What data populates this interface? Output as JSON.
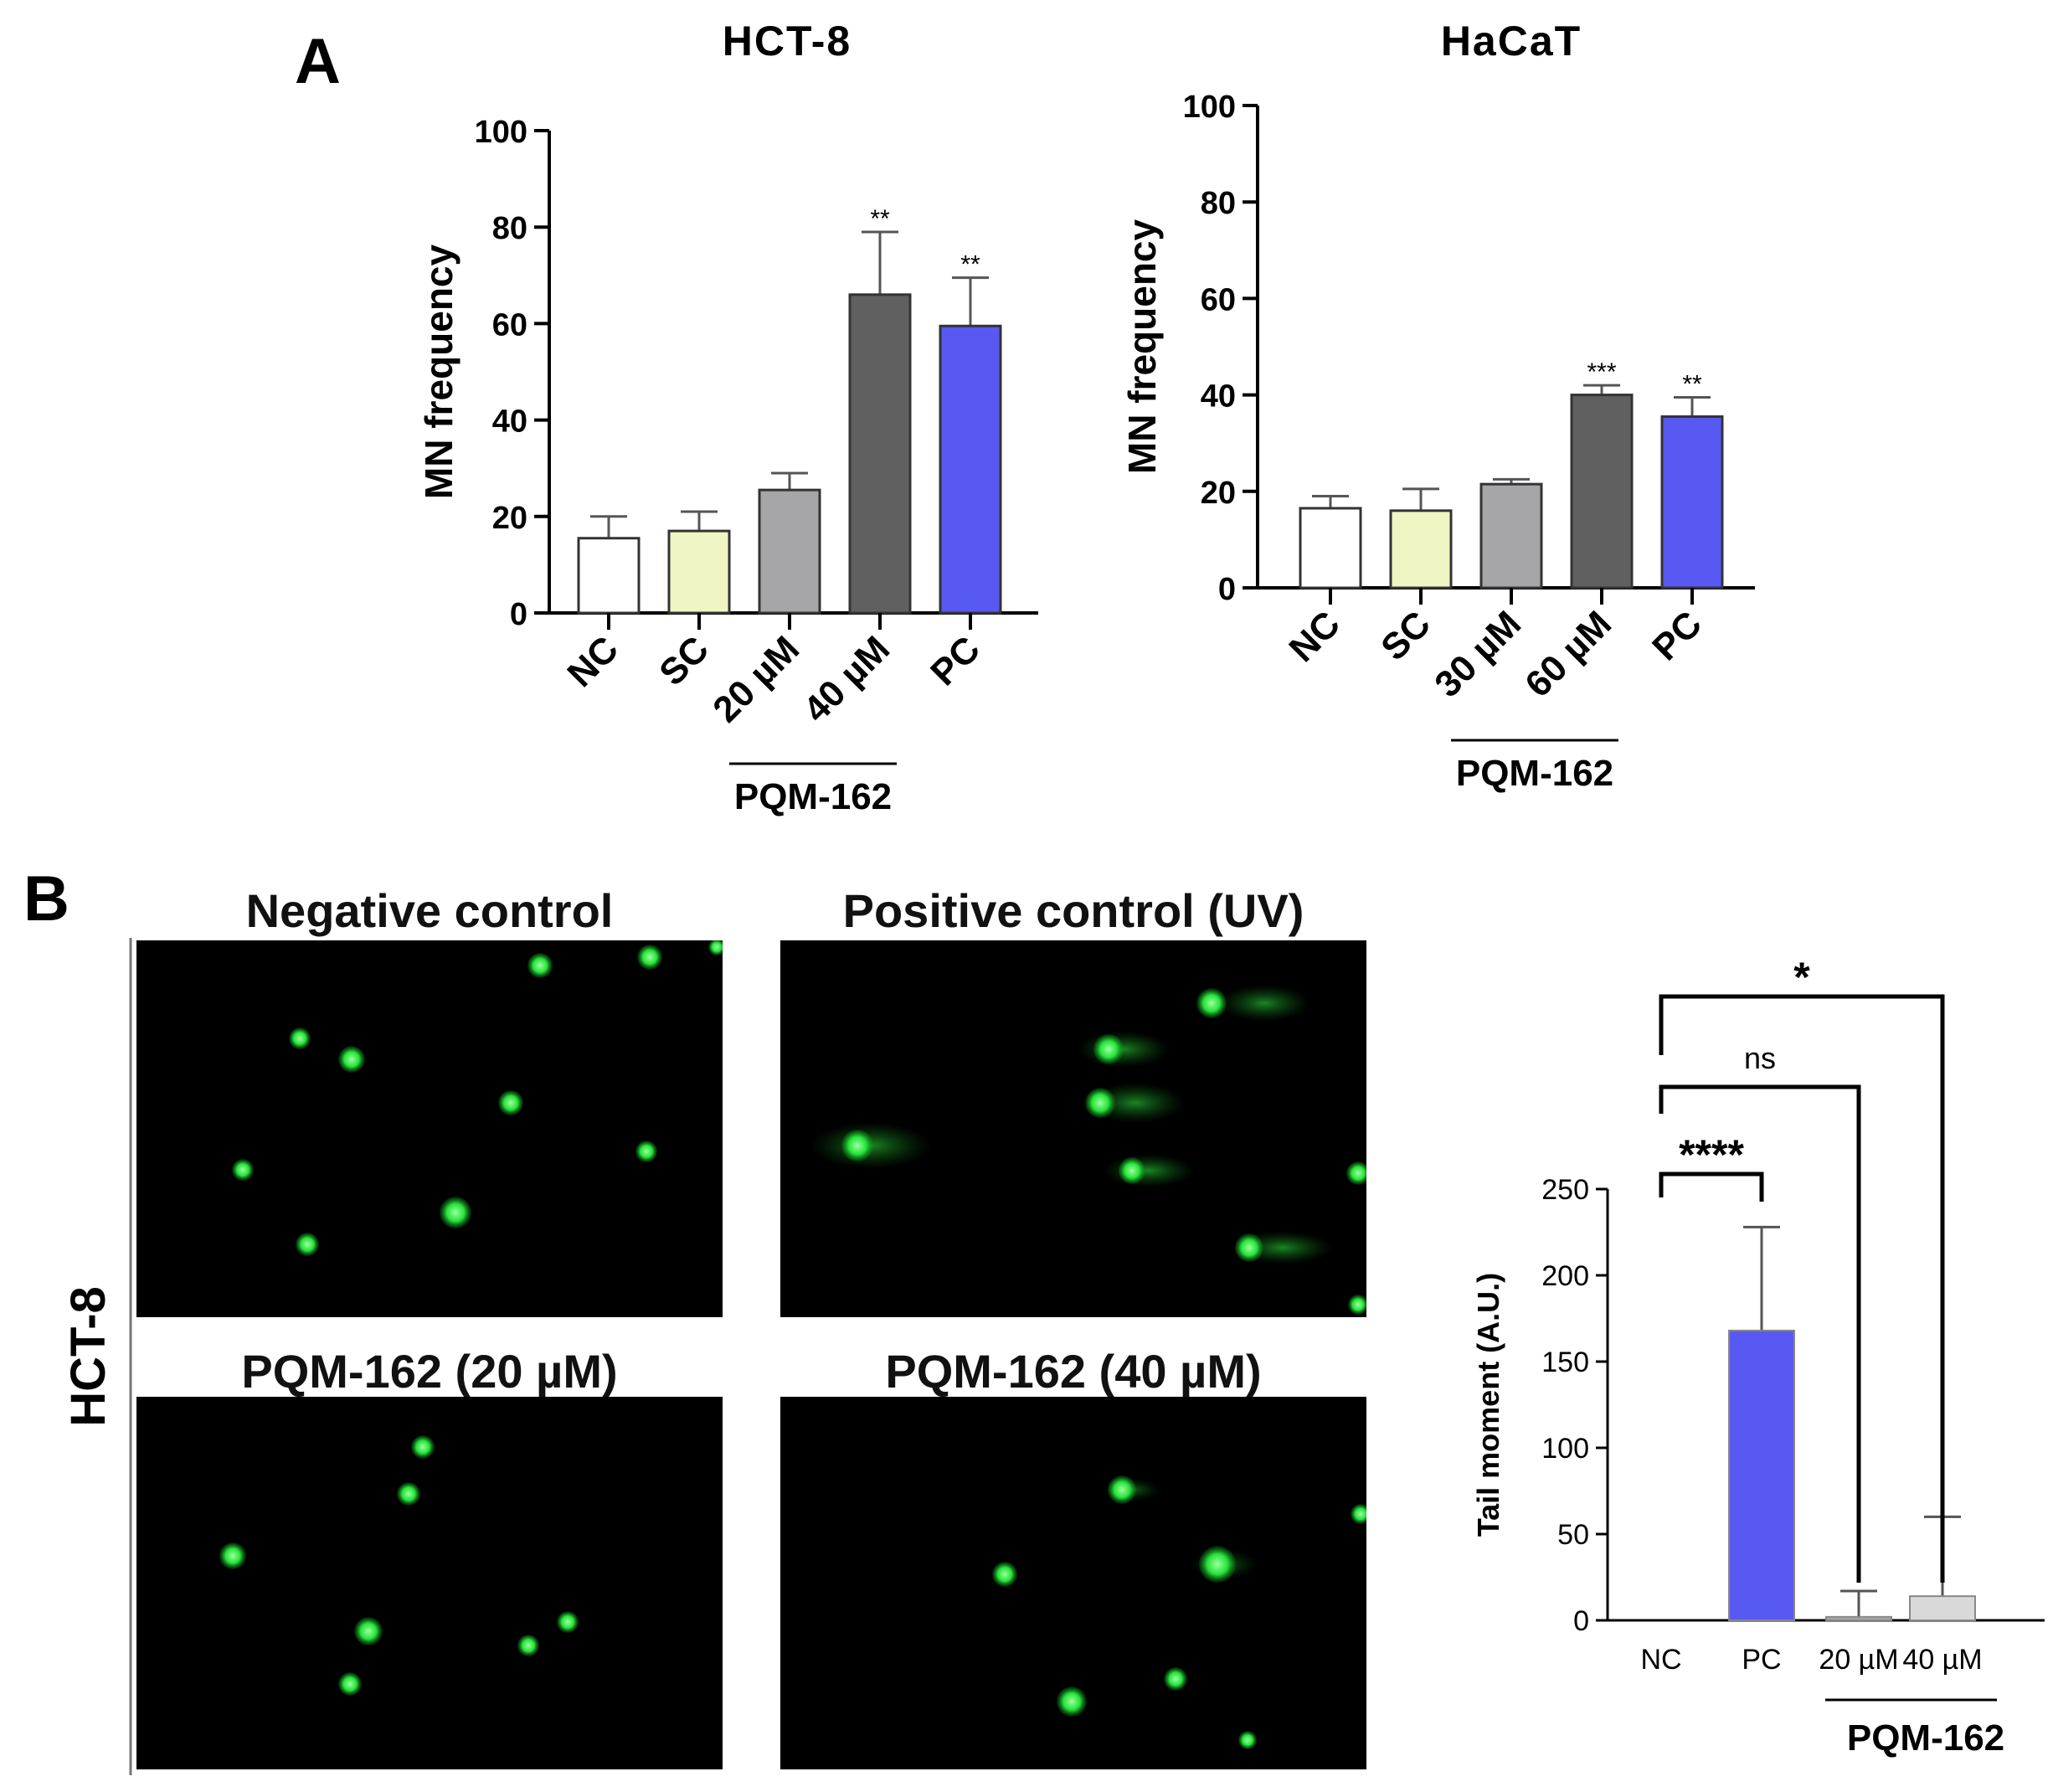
{
  "panels": {
    "a": "A",
    "b": "B"
  },
  "charts_a": [
    {
      "title": "HCT-8",
      "ylabel": "MN frequency",
      "categories": [
        "NC",
        "SC",
        "20 µM",
        "40 µM",
        "PC"
      ],
      "values": [
        15.5,
        17,
        25.5,
        66,
        59.5
      ],
      "errors": [
        4.5,
        4,
        3.5,
        13,
        10
      ],
      "sig": [
        "",
        "",
        "",
        "**",
        "**"
      ],
      "colors": [
        "#ffffff",
        "#f0f5c4",
        "#a6a6a8",
        "#606060",
        "#5858f2"
      ],
      "ylim": [
        0,
        100
      ],
      "yticks": [
        0,
        20,
        40,
        60,
        80,
        100
      ],
      "group_label": "PQM-162"
    },
    {
      "title": "HaCaT",
      "ylabel": "MN frequency",
      "categories": [
        "NC",
        "SC",
        "30 µM",
        "60 µM",
        "PC"
      ],
      "values": [
        16.5,
        16,
        21.5,
        40,
        35.5
      ],
      "errors": [
        2.5,
        4.5,
        1,
        2,
        4
      ],
      "sig": [
        "",
        "",
        "",
        "***",
        "**"
      ],
      "colors": [
        "#ffffff",
        "#f0f5c4",
        "#a6a6a8",
        "#606060",
        "#5858f2"
      ],
      "ylim": [
        0,
        100
      ],
      "yticks": [
        0,
        20,
        40,
        60,
        80,
        100
      ],
      "group_label": "PQM-162"
    }
  ],
  "microscopy": {
    "side_label": "HCT-8",
    "panels": [
      {
        "title": "Negative control"
      },
      {
        "title": "Positive control (UV)"
      },
      {
        "title": "PQM-162 (20 µM)"
      },
      {
        "title": "PQM-162 (40 µM)"
      }
    ]
  },
  "chart_data": {
    "type": "bar",
    "ylabel": "Tail moment (A.U.)",
    "categories": [
      "NC",
      "PC",
      "20 µM",
      "40 µM"
    ],
    "values": [
      0,
      168,
      2,
      14
    ],
    "errors": [
      0,
      60,
      15,
      46
    ],
    "colors": [
      "#ffffff",
      "#5858f2",
      "#a6a6a8",
      "#d9d9d9"
    ],
    "ylim": [
      0,
      250
    ],
    "yticks": [
      0,
      50,
      100,
      150,
      200,
      250
    ],
    "group_label": "PQM-162",
    "comparisons": [
      {
        "from": "NC",
        "to": "PC",
        "label": "****"
      },
      {
        "from": "NC",
        "to": "20 µM",
        "label": "ns"
      },
      {
        "from": "NC",
        "to": "40 µM",
        "label": "*"
      }
    ]
  }
}
